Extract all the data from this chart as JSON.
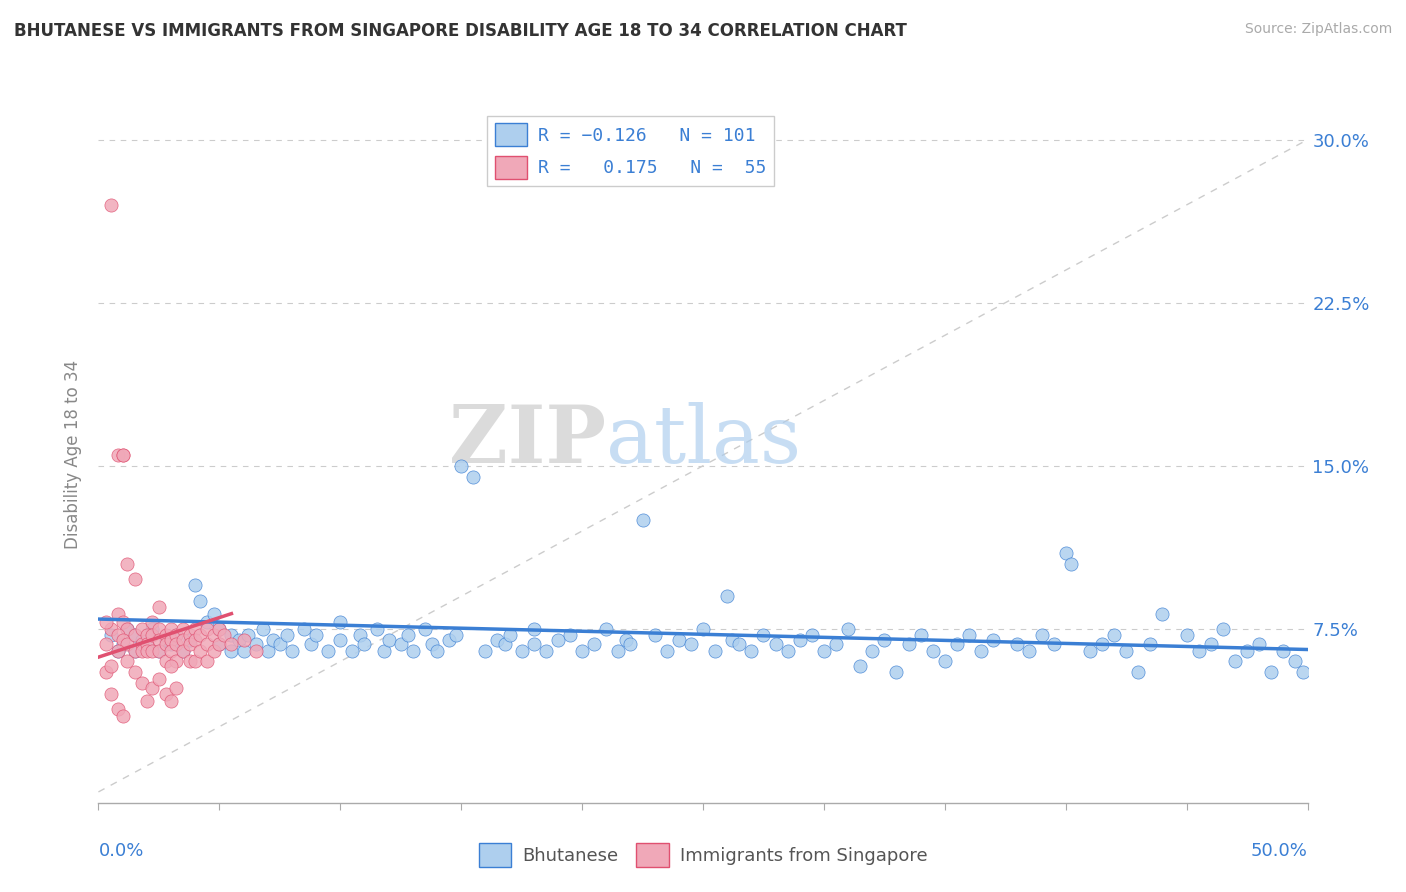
{
  "title": "BHUTANESE VS IMMIGRANTS FROM SINGAPORE DISABILITY AGE 18 TO 34 CORRELATION CHART",
  "source": "Source: ZipAtlas.com",
  "ylabel": "Disability Age 18 to 34",
  "y_ticks": [
    0.075,
    0.15,
    0.225,
    0.3
  ],
  "y_tick_labels": [
    "7.5%",
    "15.0%",
    "22.5%",
    "30.0%"
  ],
  "x_range": [
    0.0,
    0.5
  ],
  "y_range": [
    -0.005,
    0.315
  ],
  "blue_color": "#aecfee",
  "pink_color": "#f0a8b8",
  "trend_blue": "#3b7fd4",
  "trend_pink": "#e05070",
  "watermark_zip": "ZIP",
  "watermark_atlas": "atlas",
  "blue_scatter": [
    [
      0.005,
      0.072
    ],
    [
      0.008,
      0.065
    ],
    [
      0.01,
      0.068
    ],
    [
      0.012,
      0.075
    ],
    [
      0.015,
      0.065
    ],
    [
      0.015,
      0.072
    ],
    [
      0.018,
      0.07
    ],
    [
      0.02,
      0.068
    ],
    [
      0.022,
      0.075
    ],
    [
      0.025,
      0.065
    ],
    [
      0.028,
      0.07
    ],
    [
      0.03,
      0.068
    ],
    [
      0.032,
      0.072
    ],
    [
      0.035,
      0.065
    ],
    [
      0.038,
      0.07
    ],
    [
      0.04,
      0.095
    ],
    [
      0.042,
      0.088
    ],
    [
      0.045,
      0.078
    ],
    [
      0.048,
      0.082
    ],
    [
      0.05,
      0.075
    ],
    [
      0.05,
      0.068
    ],
    [
      0.055,
      0.072
    ],
    [
      0.055,
      0.065
    ],
    [
      0.058,
      0.07
    ],
    [
      0.06,
      0.065
    ],
    [
      0.062,
      0.072
    ],
    [
      0.065,
      0.068
    ],
    [
      0.068,
      0.075
    ],
    [
      0.07,
      0.065
    ],
    [
      0.072,
      0.07
    ],
    [
      0.075,
      0.068
    ],
    [
      0.078,
      0.072
    ],
    [
      0.08,
      0.065
    ],
    [
      0.085,
      0.075
    ],
    [
      0.088,
      0.068
    ],
    [
      0.09,
      0.072
    ],
    [
      0.095,
      0.065
    ],
    [
      0.1,
      0.07
    ],
    [
      0.1,
      0.078
    ],
    [
      0.105,
      0.065
    ],
    [
      0.108,
      0.072
    ],
    [
      0.11,
      0.068
    ],
    [
      0.115,
      0.075
    ],
    [
      0.118,
      0.065
    ],
    [
      0.12,
      0.07
    ],
    [
      0.125,
      0.068
    ],
    [
      0.128,
      0.072
    ],
    [
      0.13,
      0.065
    ],
    [
      0.135,
      0.075
    ],
    [
      0.138,
      0.068
    ],
    [
      0.14,
      0.065
    ],
    [
      0.145,
      0.07
    ],
    [
      0.148,
      0.072
    ],
    [
      0.15,
      0.15
    ],
    [
      0.155,
      0.145
    ],
    [
      0.16,
      0.065
    ],
    [
      0.165,
      0.07
    ],
    [
      0.168,
      0.068
    ],
    [
      0.17,
      0.072
    ],
    [
      0.175,
      0.065
    ],
    [
      0.18,
      0.075
    ],
    [
      0.18,
      0.068
    ],
    [
      0.185,
      0.065
    ],
    [
      0.19,
      0.07
    ],
    [
      0.195,
      0.072
    ],
    [
      0.2,
      0.065
    ],
    [
      0.205,
      0.068
    ],
    [
      0.21,
      0.075
    ],
    [
      0.215,
      0.065
    ],
    [
      0.218,
      0.07
    ],
    [
      0.22,
      0.068
    ],
    [
      0.225,
      0.125
    ],
    [
      0.23,
      0.072
    ],
    [
      0.235,
      0.065
    ],
    [
      0.24,
      0.07
    ],
    [
      0.245,
      0.068
    ],
    [
      0.25,
      0.075
    ],
    [
      0.255,
      0.065
    ],
    [
      0.26,
      0.09
    ],
    [
      0.262,
      0.07
    ],
    [
      0.265,
      0.068
    ],
    [
      0.27,
      0.065
    ],
    [
      0.275,
      0.072
    ],
    [
      0.28,
      0.068
    ],
    [
      0.285,
      0.065
    ],
    [
      0.29,
      0.07
    ],
    [
      0.295,
      0.072
    ],
    [
      0.3,
      0.065
    ],
    [
      0.305,
      0.068
    ],
    [
      0.31,
      0.075
    ],
    [
      0.315,
      0.058
    ],
    [
      0.32,
      0.065
    ],
    [
      0.325,
      0.07
    ],
    [
      0.33,
      0.055
    ],
    [
      0.335,
      0.068
    ],
    [
      0.34,
      0.072
    ],
    [
      0.345,
      0.065
    ],
    [
      0.35,
      0.06
    ],
    [
      0.355,
      0.068
    ],
    [
      0.36,
      0.072
    ],
    [
      0.365,
      0.065
    ],
    [
      0.37,
      0.07
    ],
    [
      0.38,
      0.068
    ],
    [
      0.385,
      0.065
    ],
    [
      0.39,
      0.072
    ],
    [
      0.395,
      0.068
    ],
    [
      0.4,
      0.11
    ],
    [
      0.402,
      0.105
    ],
    [
      0.41,
      0.065
    ],
    [
      0.415,
      0.068
    ],
    [
      0.42,
      0.072
    ],
    [
      0.425,
      0.065
    ],
    [
      0.43,
      0.055
    ],
    [
      0.435,
      0.068
    ],
    [
      0.44,
      0.082
    ],
    [
      0.45,
      0.072
    ],
    [
      0.455,
      0.065
    ],
    [
      0.46,
      0.068
    ],
    [
      0.465,
      0.075
    ],
    [
      0.47,
      0.06
    ],
    [
      0.475,
      0.065
    ],
    [
      0.48,
      0.068
    ],
    [
      0.485,
      0.055
    ],
    [
      0.49,
      0.065
    ],
    [
      0.495,
      0.06
    ],
    [
      0.498,
      0.055
    ]
  ],
  "pink_scatter": [
    [
      0.005,
      0.27
    ],
    [
      0.008,
      0.155
    ],
    [
      0.01,
      0.155
    ],
    [
      0.01,
      0.155
    ],
    [
      0.012,
      0.105
    ],
    [
      0.015,
      0.098
    ],
    [
      0.008,
      0.082
    ],
    [
      0.01,
      0.078
    ],
    [
      0.012,
      0.075
    ],
    [
      0.005,
      0.075
    ],
    [
      0.008,
      0.072
    ],
    [
      0.01,
      0.07
    ],
    [
      0.012,
      0.068
    ],
    [
      0.015,
      0.072
    ],
    [
      0.015,
      0.065
    ],
    [
      0.018,
      0.075
    ],
    [
      0.018,
      0.068
    ],
    [
      0.018,
      0.065
    ],
    [
      0.02,
      0.072
    ],
    [
      0.02,
      0.068
    ],
    [
      0.02,
      0.065
    ],
    [
      0.022,
      0.078
    ],
    [
      0.022,
      0.072
    ],
    [
      0.022,
      0.065
    ],
    [
      0.025,
      0.075
    ],
    [
      0.025,
      0.07
    ],
    [
      0.025,
      0.065
    ],
    [
      0.028,
      0.072
    ],
    [
      0.028,
      0.068
    ],
    [
      0.028,
      0.06
    ],
    [
      0.03,
      0.075
    ],
    [
      0.03,
      0.07
    ],
    [
      0.03,
      0.065
    ],
    [
      0.032,
      0.072
    ],
    [
      0.032,
      0.068
    ],
    [
      0.032,
      0.06
    ],
    [
      0.035,
      0.075
    ],
    [
      0.035,
      0.07
    ],
    [
      0.035,
      0.065
    ],
    [
      0.038,
      0.072
    ],
    [
      0.038,
      0.068
    ],
    [
      0.038,
      0.06
    ],
    [
      0.04,
      0.075
    ],
    [
      0.04,
      0.07
    ],
    [
      0.04,
      0.06
    ],
    [
      0.042,
      0.072
    ],
    [
      0.042,
      0.065
    ],
    [
      0.045,
      0.075
    ],
    [
      0.045,
      0.068
    ],
    [
      0.045,
      0.06
    ],
    [
      0.048,
      0.072
    ],
    [
      0.048,
      0.065
    ],
    [
      0.05,
      0.075
    ],
    [
      0.05,
      0.068
    ],
    [
      0.052,
      0.072
    ],
    [
      0.055,
      0.068
    ],
    [
      0.003,
      0.055
    ],
    [
      0.005,
      0.058
    ],
    [
      0.005,
      0.045
    ],
    [
      0.015,
      0.055
    ],
    [
      0.018,
      0.05
    ],
    [
      0.02,
      0.042
    ],
    [
      0.022,
      0.048
    ],
    [
      0.025,
      0.052
    ],
    [
      0.028,
      0.045
    ],
    [
      0.03,
      0.042
    ],
    [
      0.032,
      0.048
    ],
    [
      0.008,
      0.038
    ],
    [
      0.01,
      0.035
    ],
    [
      0.065,
      0.065
    ],
    [
      0.06,
      0.07
    ],
    [
      0.025,
      0.085
    ],
    [
      0.03,
      0.058
    ],
    [
      0.008,
      0.065
    ],
    [
      0.012,
      0.06
    ],
    [
      0.003,
      0.068
    ],
    [
      0.003,
      0.078
    ]
  ],
  "blue_trend_x": [
    0.0,
    0.5
  ],
  "blue_trend_y": [
    0.0795,
    0.0655
  ],
  "pink_trend_x": [
    0.0,
    0.055
  ],
  "pink_trend_y": [
    0.062,
    0.082
  ]
}
